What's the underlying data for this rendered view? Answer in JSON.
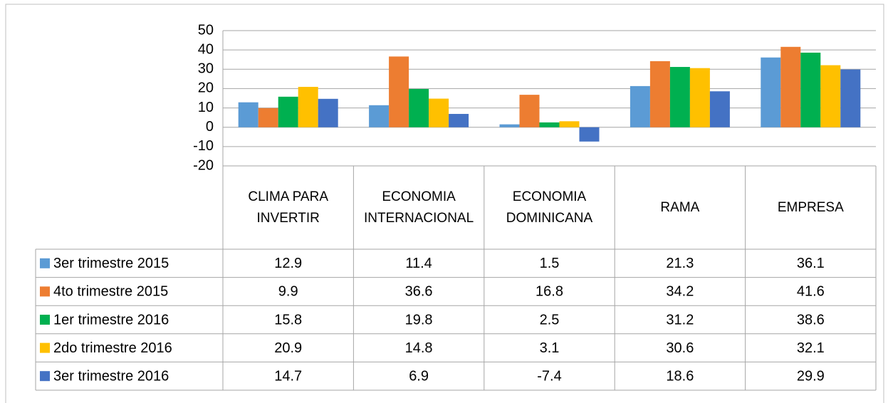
{
  "chart_data": {
    "type": "bar",
    "categories": [
      "CLIMA PARA INVERTIR",
      "ECONOMIA INTERNACIONAL",
      "ECONOMIA DOMINICANA",
      "RAMA",
      "EMPRESA"
    ],
    "series": [
      {
        "name": "3er trimestre 2015",
        "color": "#5b9bd5",
        "values": [
          12.9,
          11.4,
          1.5,
          21.3,
          36.1
        ]
      },
      {
        "name": "4to trimestre 2015",
        "color": "#ed7d31",
        "values": [
          9.9,
          36.6,
          16.8,
          34.2,
          41.6
        ]
      },
      {
        "name": "1er trimestre 2016",
        "color": "#00b050",
        "values": [
          15.8,
          19.8,
          2.5,
          31.2,
          38.6
        ]
      },
      {
        "name": "2do trimestre 2016",
        "color": "#ffc000",
        "values": [
          20.9,
          14.8,
          3.1,
          30.6,
          32.1
        ]
      },
      {
        "name": "3er trimestre 2016",
        "color": "#4472c4",
        "values": [
          14.7,
          6.9,
          -7.4,
          18.6,
          29.9
        ]
      }
    ],
    "ylim": [
      -20,
      50
    ],
    "yticks": [
      -20,
      -10,
      0,
      10,
      20,
      30,
      40,
      50
    ],
    "grid": true
  }
}
